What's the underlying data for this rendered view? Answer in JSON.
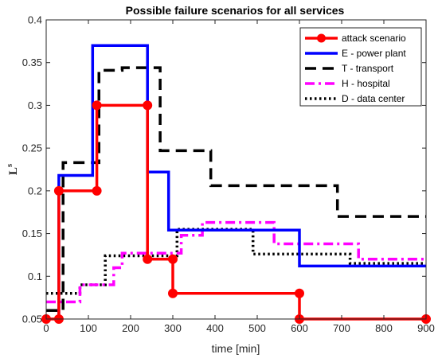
{
  "chart_data": {
    "type": "line",
    "step": true,
    "title": "Possible failure scenarios for all services",
    "xlabel": "time [min]",
    "ylabel_base": "L",
    "ylabel_sup": "s",
    "xlim": [
      0,
      900
    ],
    "ylim": [
      0.05,
      0.4
    ],
    "xticks": [
      0,
      100,
      200,
      300,
      400,
      500,
      600,
      700,
      800,
      900
    ],
    "yticks": [
      0.05,
      0.1,
      0.15,
      0.2,
      0.25,
      0.3,
      0.35,
      0.4
    ],
    "ytick_labels": [
      "0.05",
      "0.1",
      "0.15",
      "0.2",
      "0.25",
      "0.3",
      "0.35",
      "0.4"
    ],
    "grid": false,
    "legend_position": "top-right",
    "series": [
      {
        "name": "attack scenario",
        "color": "#ff0000",
        "dash": "solid",
        "markers": true,
        "x": [
          0,
          30,
          30,
          120,
          120,
          240,
          240,
          300,
          300,
          600,
          600,
          900
        ],
        "y": [
          0.05,
          0.05,
          0.2,
          0.2,
          0.3,
          0.3,
          0.12,
          0.12,
          0.08,
          0.08,
          0.05,
          0.05
        ]
      },
      {
        "name": "E - power plant",
        "color": "#0000ff",
        "dash": "solid",
        "markers": false,
        "x": [
          30,
          30,
          110,
          110,
          240,
          240,
          290,
          290,
          600,
          600,
          900
        ],
        "y": [
          0.05,
          0.218,
          0.218,
          0.37,
          0.37,
          0.222,
          0.222,
          0.154,
          0.154,
          0.112,
          0.112
        ]
      },
      {
        "name": "T - transport",
        "color": "#000000",
        "dash": "dashed",
        "markers": false,
        "x": [
          0,
          40,
          40,
          125,
          125,
          180,
          180,
          270,
          270,
          390,
          390,
          420,
          420,
          690,
          690,
          900
        ],
        "y": [
          0.06,
          0.06,
          0.233,
          0.233,
          0.341,
          0.341,
          0.344,
          0.344,
          0.247,
          0.247,
          0.206,
          0.206,
          0.206,
          0.206,
          0.17,
          0.17
        ]
      },
      {
        "name": "H - hospital",
        "color": "#ff00ff",
        "dash": "dashdot",
        "markers": false,
        "x": [
          0,
          80,
          80,
          160,
          160,
          180,
          180,
          320,
          320,
          370,
          370,
          540,
          540,
          740,
          740,
          900
        ],
        "y": [
          0.07,
          0.07,
          0.09,
          0.09,
          0.11,
          0.11,
          0.127,
          0.127,
          0.148,
          0.148,
          0.163,
          0.163,
          0.138,
          0.138,
          0.12,
          0.12
        ]
      },
      {
        "name": "D - data center",
        "color": "#000000",
        "dash": "dotted",
        "markers": false,
        "x": [
          0,
          80,
          80,
          140,
          140,
          190,
          190,
          310,
          310,
          490,
          490,
          720,
          720,
          900
        ],
        "y": [
          0.08,
          0.08,
          0.09,
          0.09,
          0.124,
          0.124,
          0.124,
          0.124,
          0.155,
          0.155,
          0.126,
          0.126,
          0.115,
          0.115
        ]
      }
    ]
  }
}
